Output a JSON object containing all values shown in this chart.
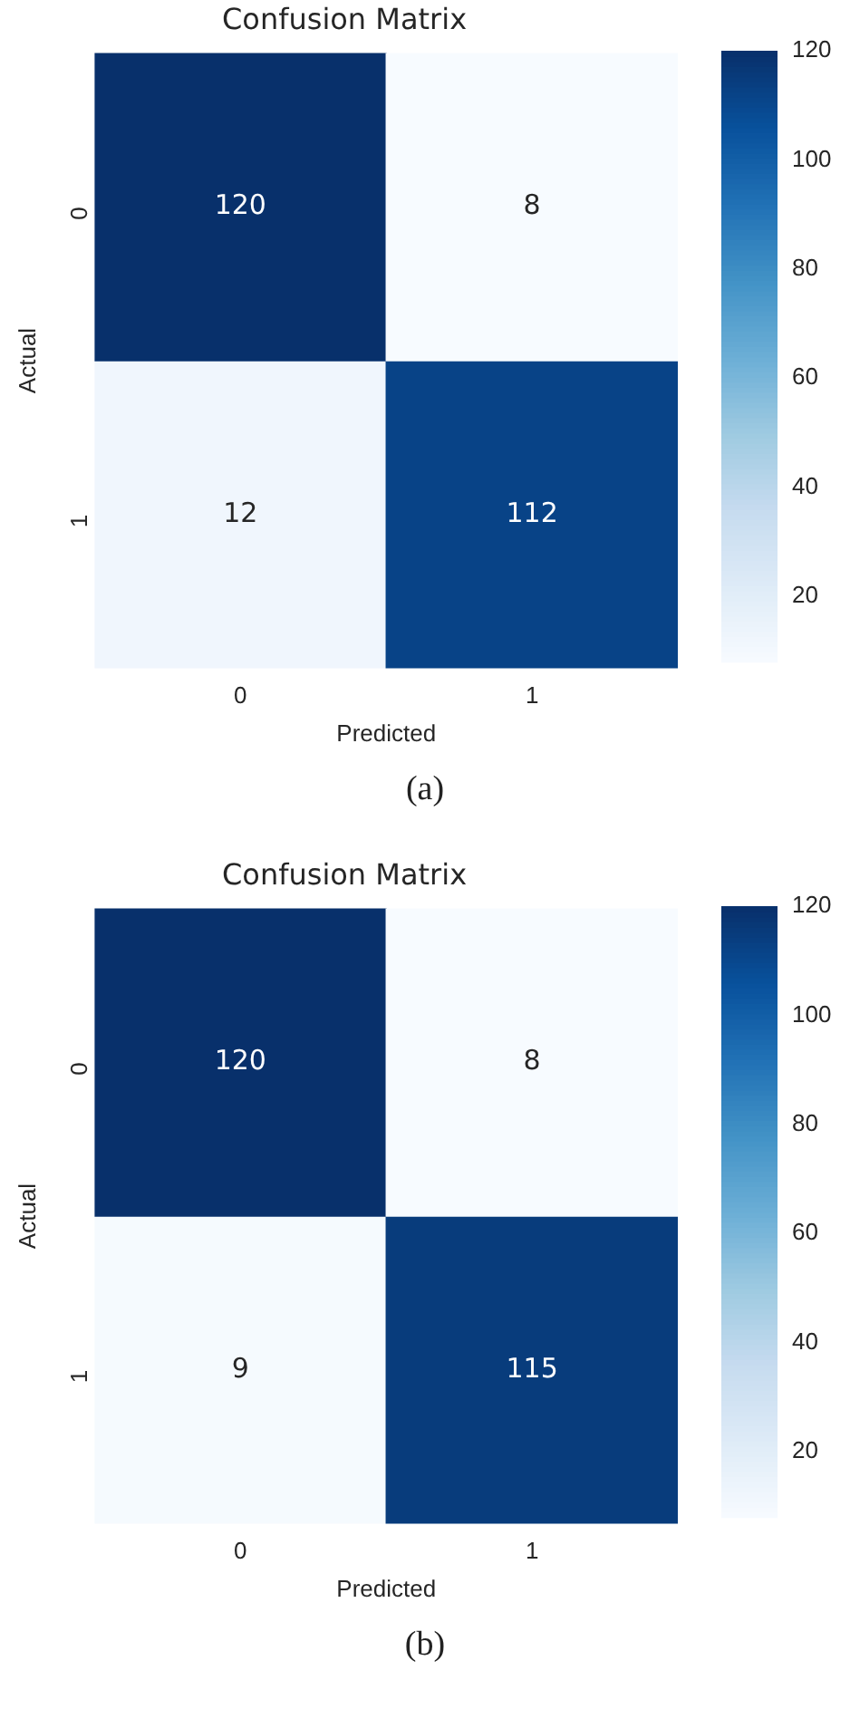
{
  "chart_data": [
    {
      "type": "heatmap",
      "title": "Confusion Matrix",
      "xlabel": "Predicted",
      "ylabel": "Actual",
      "categories": [
        "0",
        "1"
      ],
      "y_categories": [
        "0",
        "1"
      ],
      "cells": [
        [
          120,
          8
        ],
        [
          12,
          112
        ]
      ],
      "clim": [
        8,
        120
      ],
      "cticks": [
        20,
        40,
        60,
        80,
        100,
        120
      ],
      "data_labels": true,
      "annotations": [
        "(a)"
      ]
    },
    {
      "type": "heatmap",
      "title": "Confusion Matrix",
      "xlabel": "Predicted",
      "ylabel": "Actual",
      "categories": [
        "0",
        "1"
      ],
      "y_categories": [
        "0",
        "1"
      ],
      "cells": [
        [
          120,
          8
        ],
        [
          9,
          115
        ]
      ],
      "clim": [
        8,
        120
      ],
      "cticks": [
        20,
        40,
        60,
        80,
        100,
        120
      ],
      "data_labels": true,
      "annotations": [
        "(b)"
      ]
    }
  ]
}
